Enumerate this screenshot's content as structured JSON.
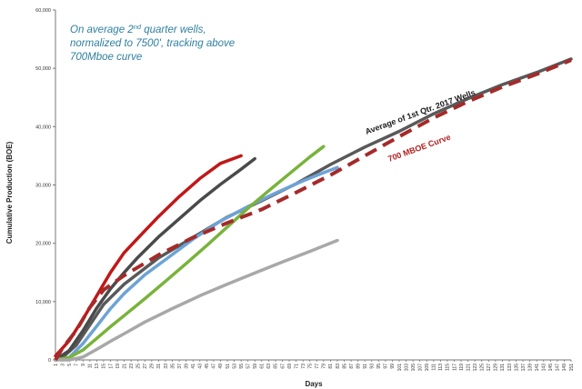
{
  "chart_data": {
    "type": "line",
    "xlabel": "Days",
    "ylabel": "Cumulative Production (BOE)",
    "xlim": [
      1,
      151
    ],
    "ylim": [
      0,
      60000
    ],
    "yticks": [
      0,
      10000,
      20000,
      30000,
      40000,
      50000,
      60000
    ],
    "ytick_labels": [
      "0",
      "10,000",
      "20,000",
      "30,000",
      "40,000",
      "50,000",
      "60,000"
    ],
    "xticks": [
      1,
      3,
      5,
      7,
      9,
      11,
      13,
      15,
      17,
      19,
      21,
      23,
      25,
      27,
      29,
      31,
      33,
      35,
      37,
      39,
      41,
      43,
      45,
      47,
      49,
      51,
      53,
      55,
      57,
      59,
      61,
      63,
      65,
      67,
      69,
      71,
      73,
      75,
      77,
      79,
      81,
      83,
      85,
      87,
      89,
      91,
      93,
      95,
      97,
      99,
      101,
      103,
      105,
      107,
      109,
      111,
      113,
      115,
      117,
      119,
      121,
      123,
      125,
      127,
      129,
      131,
      133,
      135,
      137,
      139,
      141,
      143,
      145,
      147,
      149,
      151
    ],
    "grid": false,
    "annotation": {
      "line1_before": "On average 2",
      "line1_sup": "nd",
      "line1_after": " quarter wells,",
      "line2": "normalized to 7500', tracking above",
      "line3": "700Mboe curve"
    },
    "curve_labels": {
      "average": "Average of 1st Qtr. 2017 Wells",
      "mboe": "700 MBOE Curve"
    },
    "series": [
      {
        "label": "700 MBOE Curve",
        "color": "#a52a2a",
        "dashed": true,
        "x": [
          1,
          3,
          7,
          11,
          15,
          21,
          31,
          41,
          51,
          61,
          71,
          81,
          91,
          101,
          111,
          121,
          131,
          141,
          151
        ],
        "y": [
          0,
          2000,
          5000,
          9000,
          12000,
          14500,
          18000,
          21000,
          23500,
          25800,
          28700,
          31700,
          35000,
          38300,
          41500,
          44300,
          46800,
          49000,
          51400
        ]
      },
      {
        "label": "Average of 1st Qtr. 2017 Wells",
        "color": "#595959",
        "dashed": false,
        "x": [
          1,
          3,
          7,
          11,
          15,
          21,
          31,
          41,
          51,
          61,
          71,
          81,
          91,
          101,
          111,
          121,
          131,
          141,
          151
        ],
        "y": [
          0,
          400,
          2500,
          6000,
          9500,
          13000,
          17500,
          21000,
          24500,
          27300,
          30200,
          33500,
          36500,
          39200,
          42200,
          44800,
          47200,
          49300,
          51600
        ]
      },
      {
        "color": "#c01818",
        "dashed": false,
        "x": [
          1,
          3,
          5,
          9,
          13,
          17,
          21,
          25,
          31,
          37,
          43,
          49,
          55
        ],
        "y": [
          700,
          2000,
          3300,
          7000,
          11000,
          15000,
          18400,
          20900,
          24600,
          28000,
          31100,
          33700,
          35000
        ]
      },
      {
        "color": "#4a4a4a",
        "dashed": false,
        "x": [
          1,
          5,
          9,
          13,
          17,
          21,
          25,
          31,
          37,
          43,
          49,
          55,
          59
        ],
        "y": [
          0,
          1600,
          5000,
          8900,
          12200,
          15000,
          17600,
          21100,
          24200,
          27300,
          30100,
          32700,
          34500
        ]
      },
      {
        "color": "#6da3d6",
        "dashed": false,
        "x": [
          1,
          5,
          9,
          13,
          17,
          21,
          27,
          33,
          41,
          49,
          57,
          65,
          73,
          79,
          83
        ],
        "y": [
          0,
          400,
          2800,
          5800,
          8800,
          11400,
          14600,
          17200,
          20700,
          23800,
          26300,
          28600,
          30700,
          32100,
          33000
        ]
      },
      {
        "color": "#79b33b",
        "dashed": false,
        "x": [
          1,
          5,
          9,
          13,
          17,
          21,
          27,
          33,
          39,
          45,
          51,
          57,
          63,
          69,
          75,
          79
        ],
        "y": [
          0,
          400,
          1700,
          3700,
          5700,
          7600,
          10500,
          13500,
          16500,
          19600,
          22800,
          26000,
          29000,
          31900,
          34800,
          36600
        ]
      },
      {
        "color": "#a8a8a8",
        "dashed": false,
        "x": [
          1,
          5,
          9,
          13,
          17,
          21,
          27,
          35,
          43,
          51,
          59,
          67,
          75,
          83
        ],
        "y": [
          0,
          0,
          500,
          1800,
          3200,
          4500,
          6500,
          8800,
          11000,
          13000,
          14900,
          16800,
          18600,
          20500
        ]
      }
    ]
  }
}
